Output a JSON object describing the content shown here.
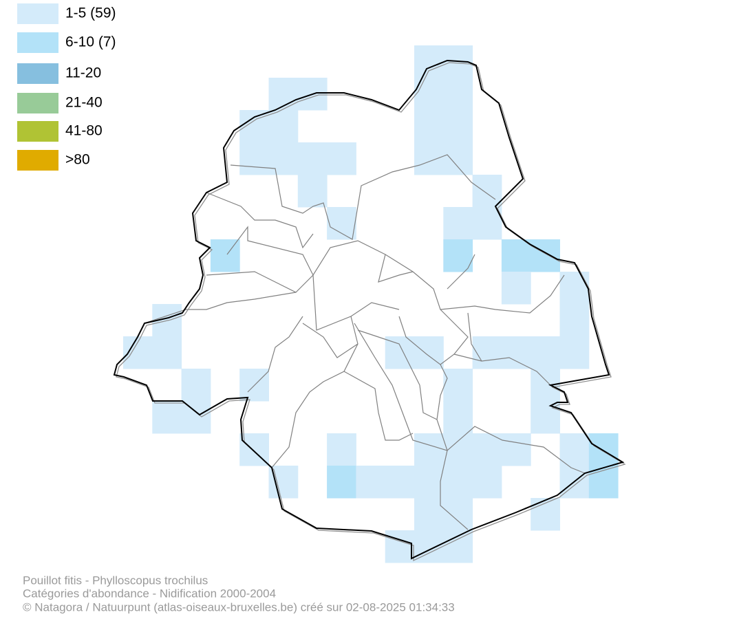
{
  "legend": {
    "items": [
      {
        "label": "1-5 (59)",
        "color": "#d4ebfa"
      },
      {
        "label": "6-10 (7)",
        "color": "#b3e2f8"
      },
      {
        "label": "11-20",
        "color": "#86bfdf"
      },
      {
        "label": "21-40",
        "color": "#98cb98"
      },
      {
        "label": "41-80",
        "color": "#b0c334"
      },
      {
        "label": ">80",
        "color": "#e0ab00"
      }
    ]
  },
  "footer": {
    "lines": [
      "Pouillot fitis - Phylloscopus trochilus",
      "Catégories d'abondance - Nidification 2000-2004",
      "© Natagora / Natuurpunt (atlas-oiseaux-bruxelles.be) créé sur 02-08-2025 01:34:33"
    ]
  }
}
